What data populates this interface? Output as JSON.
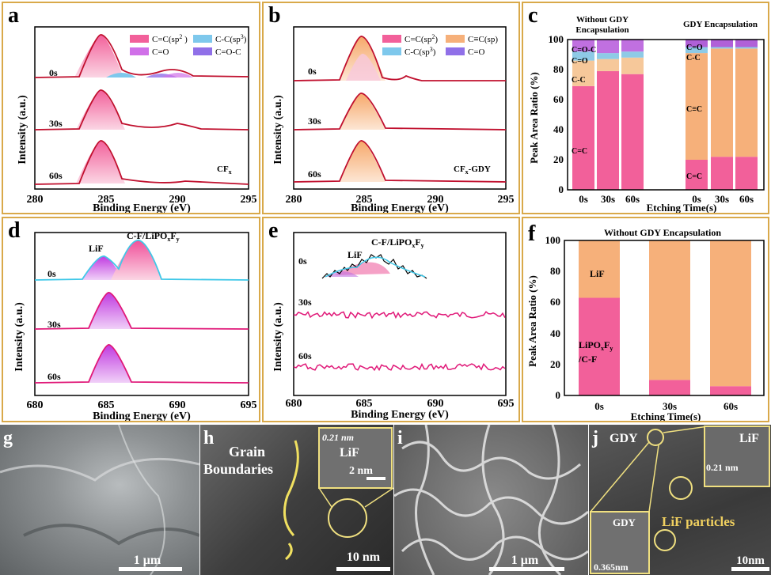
{
  "panels": {
    "a": {
      "letter": "a",
      "xlabel": "Binding Energy (eV)",
      "ylabel": "Intensity (a.u.)",
      "xticks": [
        "280",
        "285",
        "290",
        "295"
      ],
      "times": [
        "0s",
        "30s",
        "60s"
      ],
      "sample": "CF",
      "sample_sub": "x",
      "legend": [
        {
          "label": "C=C(sp",
          "sup": "2",
          "tail": " )",
          "color": "#f2609a"
        },
        {
          "label": "C-C(sp",
          "sup": "3",
          "tail": ")",
          "color": "#7ec8ec"
        },
        {
          "label": "C=O",
          "color": "#d070e8"
        },
        {
          "label": "C=O-C",
          "color": "#9070e8"
        }
      ]
    },
    "b": {
      "letter": "b",
      "xlabel": "Binding Energy (eV)",
      "ylabel": "Intensity (a.u.)",
      "xticks": [
        "280",
        "285",
        "290",
        "295"
      ],
      "times": [
        "0s",
        "30s",
        "60s"
      ],
      "sample": "CF",
      "sample_sub": "x",
      "sample_tail": "-GDY",
      "legend": [
        {
          "label": "C=C(sp",
          "sup": "2",
          "tail": ")",
          "color": "#f2609a"
        },
        {
          "label": "C≡C(sp)",
          "color": "#f6b07a"
        },
        {
          "label": "C-C(sp",
          "sup": "3",
          "tail": ")",
          "color": "#7ec8ec"
        },
        {
          "label": "C=O",
          "color": "#9070e8"
        }
      ]
    },
    "c": {
      "letter": "c",
      "ylabel": "Peak Area Ratio (%)",
      "xlabel": "Etching Time(s)",
      "yticks": [
        "0",
        "20",
        "40",
        "60",
        "80",
        "100"
      ],
      "header_left": "Without GDY",
      "header_left2": "Encapsulation",
      "header_right": "GDY Encapsulation",
      "bars_left": [
        "0s",
        "30s",
        "60s"
      ],
      "bars_right": [
        "0s",
        "30s",
        "60s"
      ],
      "labels_left": [
        "C=O-C",
        "C=O",
        "C-C",
        "C=C"
      ],
      "labels_right": [
        "C=O",
        "C-C",
        "C≡C",
        "C=C"
      ]
    },
    "d": {
      "letter": "d",
      "xlabel": "Binding Energy (eV)",
      "ylabel": "Intensity (a.u.)",
      "xticks": [
        "680",
        "685",
        "690",
        "695"
      ],
      "times": [
        "0s",
        "30s",
        "60s"
      ],
      "peak1": "LiF",
      "peak2": "C-F/LiPO",
      "peak2_sub1": "x",
      "peak2_mid": "F",
      "peak2_sub2": "y"
    },
    "e": {
      "letter": "e",
      "xlabel": "Binding Energy (eV)",
      "ylabel": "Intensity (a.u.)",
      "xticks": [
        "680",
        "685",
        "690",
        "695"
      ],
      "times": [
        "0s",
        "30s",
        "60s"
      ],
      "peak1": "LiF",
      "peak2": "C-F/LiPO",
      "peak2_sub1": "x",
      "peak2_mid": "F",
      "peak2_sub2": "y"
    },
    "f": {
      "letter": "f",
      "title": "Without GDY Encapsulation",
      "ylabel": "Peak Area Ratio (%)",
      "xlabel": "Etching Time(s)",
      "yticks": [
        "0",
        "20",
        "40",
        "60",
        "80",
        "100"
      ],
      "categories": [
        "0s",
        "30s",
        "60s"
      ],
      "label_top": "LiF",
      "label_bot1": "LiPO",
      "label_bot1_sub": "x",
      "label_bot1_mid": "F",
      "label_bot1_sub2": "y",
      "label_bot2": "/C-F"
    },
    "g": {
      "letter": "g",
      "scale": "1 μm"
    },
    "h": {
      "letter": "h",
      "label1": "Grain",
      "label2": "Boundaries",
      "inset_d": "0.21 nm",
      "inset_name": "LiF",
      "inset_scale": "2 nm",
      "scale": "10 nm"
    },
    "i": {
      "letter": "i",
      "scale": "1 μm"
    },
    "j": {
      "letter": "j",
      "gdy": "GDY",
      "inset_name": "LiF",
      "inset_d": "0.21 nm",
      "particles": "LiF particles",
      "inset2_name": "GDY",
      "inset2_d": "0.365nm",
      "scale": "10nm"
    }
  },
  "chart_data": [
    {
      "panel": "c",
      "type": "bar",
      "stacked": true,
      "categories": [
        "0s",
        "30s",
        "60s",
        "0s",
        "30s",
        "60s"
      ],
      "groups": [
        "Without GDY Encapsulation",
        "Without GDY Encapsulation",
        "Without GDY Encapsulation",
        "GDY Encapsulation",
        "GDY Encapsulation",
        "GDY Encapsulation"
      ],
      "series": [
        {
          "name": "C=C",
          "values": [
            69,
            79,
            77,
            20,
            22,
            22
          ],
          "color": "#f2609a"
        },
        {
          "name": "C-C",
          "values": [
            17,
            8,
            11,
            0,
            0,
            0
          ],
          "color": "#f6c89a"
        },
        {
          "name": "C≡C",
          "values": [
            0,
            0,
            0,
            71,
            72,
            72
          ],
          "color": "#f6b07a"
        },
        {
          "name": "C=O",
          "values": [
            6,
            4,
            4,
            0,
            0,
            0
          ],
          "color": "#8ecae6"
        },
        {
          "name": "C-C (sp3)",
          "values": [
            0,
            0,
            0,
            4,
            1,
            1
          ],
          "color": "#8ecae6"
        },
        {
          "name": "C=O-C",
          "values": [
            8,
            9,
            8,
            0,
            0,
            0
          ],
          "color": "#c070e0"
        },
        {
          "name": "C=O",
          "values": [
            0,
            0,
            0,
            5,
            5,
            5
          ],
          "color": "#b060d8"
        }
      ],
      "ylim": [
        0,
        100
      ],
      "ylabel": "Peak Area Ratio (%)",
      "xlabel": "Etching Time(s)"
    },
    {
      "panel": "f",
      "type": "bar",
      "stacked": true,
      "categories": [
        "0s",
        "30s",
        "60s"
      ],
      "series": [
        {
          "name": "LiPOxFy/C-F",
          "values": [
            63,
            10,
            6
          ],
          "color": "#f2609a"
        },
        {
          "name": "LiF",
          "values": [
            37,
            90,
            94
          ],
          "color": "#f6b07a"
        }
      ],
      "ylim": [
        0,
        100
      ],
      "title": "Without GDY Encapsulation",
      "ylabel": "Peak Area Ratio (%)",
      "xlabel": "Etching Time(s)"
    }
  ]
}
